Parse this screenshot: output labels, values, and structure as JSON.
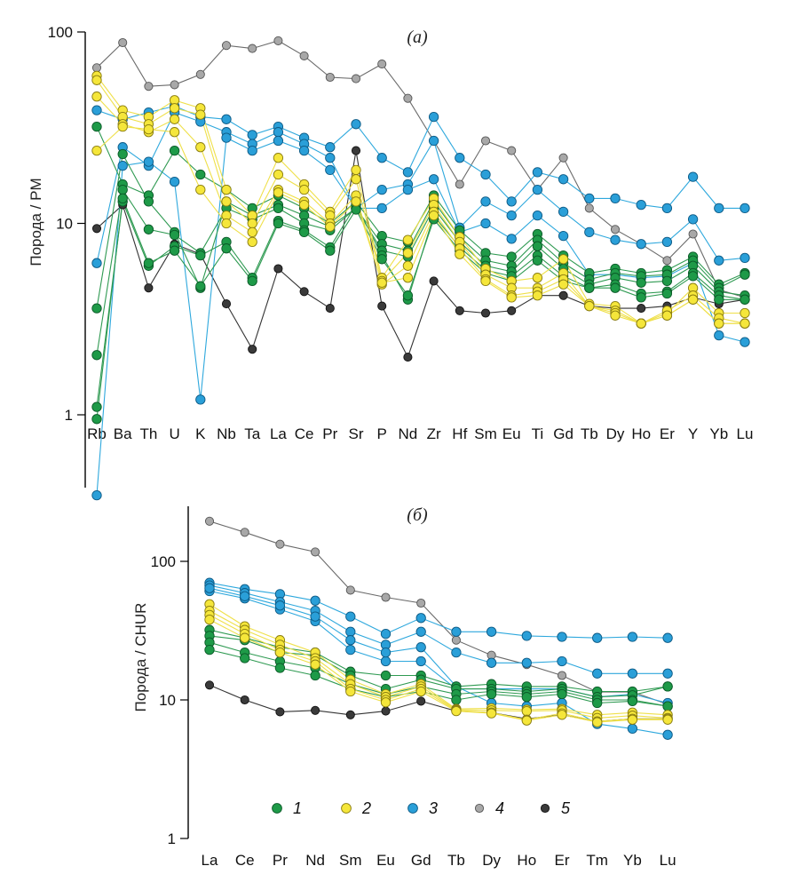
{
  "colors": {
    "1": {
      "fill": "#1e9a48",
      "stroke": "#0b5a28",
      "line": "#2f9a52"
    },
    "2": {
      "fill": "#f5e63a",
      "stroke": "#8a7d10",
      "line": "#efe04a"
    },
    "3": {
      "fill": "#2a9fd8",
      "stroke": "#0d5a85",
      "line": "#2ea8dd"
    },
    "4": {
      "fill": "#a8a8a8",
      "stroke": "#555555",
      "line": "#6a6a6a"
    },
    "5": {
      "fill": "#3a3a3a",
      "stroke": "#111111",
      "line": "#333333"
    }
  },
  "legend": [
    {
      "group": "1",
      "label": "1"
    },
    {
      "group": "2",
      "label": "2"
    },
    {
      "group": "3",
      "label": "3"
    },
    {
      "group": "4",
      "label": "4"
    },
    {
      "group": "5",
      "label": "5"
    }
  ],
  "chart_data": [
    {
      "type": "line",
      "title": "(а)",
      "ylabel": "Порода / PM",
      "xlabel": "",
      "yscale": "log",
      "ylim": [
        0.4,
        100
      ],
      "yticks": [
        1,
        10,
        100
      ],
      "ytick_labels": [
        "1",
        "10",
        "100"
      ],
      "categories": [
        "Rb",
        "Ba",
        "Th",
        "U",
        "K",
        "Nb",
        "Ta",
        "La",
        "Ce",
        "Pr",
        "Sr",
        "P",
        "Nd",
        "Zr",
        "Hf",
        "Sm",
        "Eu",
        "Ti",
        "Gd",
        "Tb",
        "Dy",
        "Ho",
        "Er",
        "Y",
        "Yb",
        "Lu"
      ],
      "series": [
        {
          "group": "4",
          "values": [
            65,
            88,
            52,
            53,
            60,
            85,
            82,
            90,
            75,
            58,
            57,
            68,
            45,
            27,
            16,
            27,
            24,
            15,
            22,
            12,
            9.3,
            7.8,
            6.4,
            8.8,
            4.5,
            4.1
          ]
        },
        {
          "group": "5",
          "values": [
            9.4,
            12.5,
            4.6,
            7.8,
            6.9,
            3.8,
            2.2,
            5.8,
            4.4,
            3.6,
            24,
            3.7,
            2.0,
            5.0,
            3.5,
            3.4,
            3.5,
            4.2,
            4.2,
            3.7,
            3.6,
            3.6,
            3.7,
            4.1,
            3.8,
            4.0
          ]
        },
        {
          "group": "1",
          "values": [
            32,
            16,
            14,
            24,
            18,
            15,
            12,
            14,
            12,
            10,
            13,
            8.6,
            8.0,
            14,
            9.2,
            7.0,
            6.7,
            8.8,
            6.8,
            5.5,
            5.8,
            5.5,
            5.7,
            6.7,
            4.8,
            5.5
          ]
        },
        {
          "group": "1",
          "values": [
            3.6,
            23,
            13,
            9,
            4.6,
            13,
            11,
            12.5,
            11,
            9.6,
            12,
            7.8,
            7.2,
            13,
            8.5,
            6.4,
            6.0,
            8.2,
            6.2,
            5.1,
            5.5,
            5.3,
            5.4,
            6.4,
            4.6,
            5.4
          ]
        },
        {
          "group": "1",
          "values": [
            2.05,
            15,
            9.3,
            8.7,
            7.0,
            12,
            10.5,
            12,
            10,
            9.2,
            12,
            7.2,
            6.7,
            12,
            8.0,
            6.0,
            5.6,
            7.6,
            5.8,
            4.8,
            5.2,
            4.9,
            5.0,
            6.0,
            4.4,
            4.2
          ]
        },
        {
          "group": "1",
          "values": [
            1.1,
            13,
            6.0,
            7.6,
            6.8,
            8,
            5.2,
            10.3,
            9.2,
            7.5,
            12.5,
            6.8,
            4.0,
            11,
            7.5,
            5.7,
            5.3,
            6.8,
            5.3,
            4.6,
            4.8,
            4.3,
            4.4,
            5.5,
            4.2,
            4.0
          ]
        },
        {
          "group": "1",
          "values": [
            0.95,
            13.5,
            6.2,
            7.2,
            4.7,
            7.4,
            5.0,
            10,
            9,
            7.2,
            11.8,
            6.5,
            4.2,
            10.5,
            7.2,
            5.5,
            5.0,
            6.4,
            5.0,
            4.6,
            4.6,
            4.1,
            4.3,
            5.3,
            4.0,
            4.0
          ]
        },
        {
          "group": "2",
          "values": [
            59,
            39,
            36,
            44,
            40,
            15,
            11,
            22,
            16,
            11.5,
            19,
            5.2,
            8.2,
            13.5,
            8.5,
            5.8,
            5.0,
            5.2,
            6.5,
            3.8,
            3.7,
            3.0,
            3.4,
            4.6,
            3.4,
            3.4
          ]
        },
        {
          "group": "2",
          "values": [
            56,
            36,
            33,
            40,
            37,
            13,
            10,
            18,
            15,
            11,
            17,
            5.0,
            7.0,
            12.5,
            8,
            5.4,
            4.6,
            4.6,
            5.5,
            3.7,
            3.5,
            3.0,
            3.5,
            4.2,
            3.2,
            3.0
          ]
        },
        {
          "group": "2",
          "values": [
            46,
            33,
            30,
            35,
            25,
            11,
            9,
            15,
            13,
            10,
            14,
            4.8,
            6.0,
            11.5,
            7.4,
            5.1,
            4.2,
            4.4,
            5.1,
            3.7,
            3.4,
            3.0,
            3.3,
            4.0,
            3.0,
            3.0
          ]
        },
        {
          "group": "2",
          "values": [
            24,
            32,
            31,
            30,
            15,
            10,
            8,
            14.5,
            12.5,
            9.6,
            13,
            4.9,
            5.2,
            11,
            6.9,
            5.0,
            4.1,
            4.2,
            4.8,
            3.7,
            3.3,
            3.0,
            3.3,
            4.0,
            3.0,
            3.0
          ]
        },
        {
          "group": "3",
          "values": [
            39,
            35,
            38,
            41,
            36,
            35,
            29,
            32,
            28,
            25,
            33,
            22,
            18.5,
            36,
            22,
            18,
            13,
            18.5,
            17,
            13.5,
            13.5,
            12.5,
            12,
            17.5,
            12,
            12
          ]
        },
        {
          "group": "3",
          "values": [
            6.2,
            25,
            20,
            38,
            34,
            30,
            26,
            30,
            26,
            22,
            12,
            15,
            16,
            27,
            9.5,
            13,
            11,
            15,
            11.5,
            9.0,
            8.2,
            7.8,
            8.0,
            10.5,
            6.4,
            6.6
          ]
        },
        {
          "group": "3",
          "values": [
            0.38,
            20,
            21,
            16.5,
            1.2,
            28,
            24,
            27,
            24,
            19,
            12,
            12,
            15,
            17,
            9.0,
            10,
            8.3,
            11,
            8.6,
            5.4,
            5.4,
            5.2,
            5.3,
            6.2,
            2.6,
            2.4
          ]
        }
      ]
    },
    {
      "type": "line",
      "title": "(б)",
      "ylabel": "Порода / CHUR",
      "xlabel": "",
      "yscale": "log",
      "ylim": [
        1,
        300
      ],
      "yticks": [
        1,
        10,
        100
      ],
      "ytick_labels": [
        "1",
        "10",
        "100"
      ],
      "categories": [
        "La",
        "Ce",
        "Pr",
        "Nd",
        "Sm",
        "Eu",
        "Gd",
        "Tb",
        "Dy",
        "Ho",
        "Er",
        "Tm",
        "Yb",
        "Lu"
      ],
      "series": [
        {
          "group": "4",
          "values": [
            195,
            162,
            133,
            117,
            62,
            55,
            50,
            27,
            21,
            18,
            15,
            11.4,
            11.4,
            9.3
          ]
        },
        {
          "group": "5",
          "values": [
            12.8,
            10.0,
            8.2,
            8.4,
            7.8,
            8.3,
            9.8,
            8.3,
            8.1,
            7.3,
            7.8,
            7.0,
            7.3,
            7.3
          ]
        },
        {
          "group": "1",
          "values": [
            32,
            28,
            24,
            22,
            16,
            15,
            15,
            12.5,
            13,
            12.5,
            12.5,
            11.5,
            11.5,
            12.5
          ]
        },
        {
          "group": "1",
          "values": [
            29,
            27,
            22,
            21,
            15,
            12,
            14,
            12,
            12,
            11.5,
            12,
            10.5,
            10.8,
            12.5
          ]
        },
        {
          "group": "1",
          "values": [
            26,
            22,
            19,
            17,
            13,
            11,
            12.5,
            11,
            11.5,
            11,
            11.5,
            10,
            10,
            9.0
          ]
        },
        {
          "group": "1",
          "values": [
            23,
            20,
            17,
            15,
            12,
            10.5,
            11.5,
            10,
            11,
            10.5,
            11,
            9.5,
            9.8,
            9.0
          ]
        },
        {
          "group": "2",
          "values": [
            49,
            34,
            27,
            22,
            14,
            11,
            13,
            8.6,
            8.7,
            8.5,
            8.6,
            7.8,
            8.1,
            7.8
          ]
        },
        {
          "group": "2",
          "values": [
            44,
            32,
            25,
            20,
            13,
            10.5,
            12.5,
            8.5,
            8.4,
            8.3,
            8.4,
            7.4,
            7.7,
            7.4
          ]
        },
        {
          "group": "2",
          "values": [
            41,
            30,
            23,
            19,
            12,
            10,
            12,
            8.4,
            8.1,
            7.2,
            8.0,
            7.0,
            7.3,
            7.3
          ]
        },
        {
          "group": "2",
          "values": [
            38,
            28,
            22,
            18,
            11.5,
            9.6,
            11.5,
            8.3,
            8.0,
            7.1,
            7.8,
            6.9,
            7.2,
            7.2
          ]
        },
        {
          "group": "3",
          "values": [
            70,
            63,
            58,
            52,
            40,
            30,
            39,
            31,
            31,
            29,
            28.5,
            28,
            28.5,
            28
          ]
        },
        {
          "group": "3",
          "values": [
            67,
            59,
            51,
            44,
            31,
            25,
            31,
            22,
            18.5,
            18.5,
            19,
            15.5,
            15.5,
            15.5
          ]
        },
        {
          "group": "3",
          "values": [
            61,
            54,
            45,
            37,
            23,
            19,
            19,
            12,
            12,
            12,
            12,
            10.5,
            11,
            9.5
          ]
        },
        {
          "group": "3",
          "values": [
            64,
            56,
            48,
            40,
            27,
            22,
            24,
            12.5,
            9.5,
            9.0,
            9.5,
            6.7,
            6.2,
            5.6
          ]
        }
      ]
    }
  ]
}
